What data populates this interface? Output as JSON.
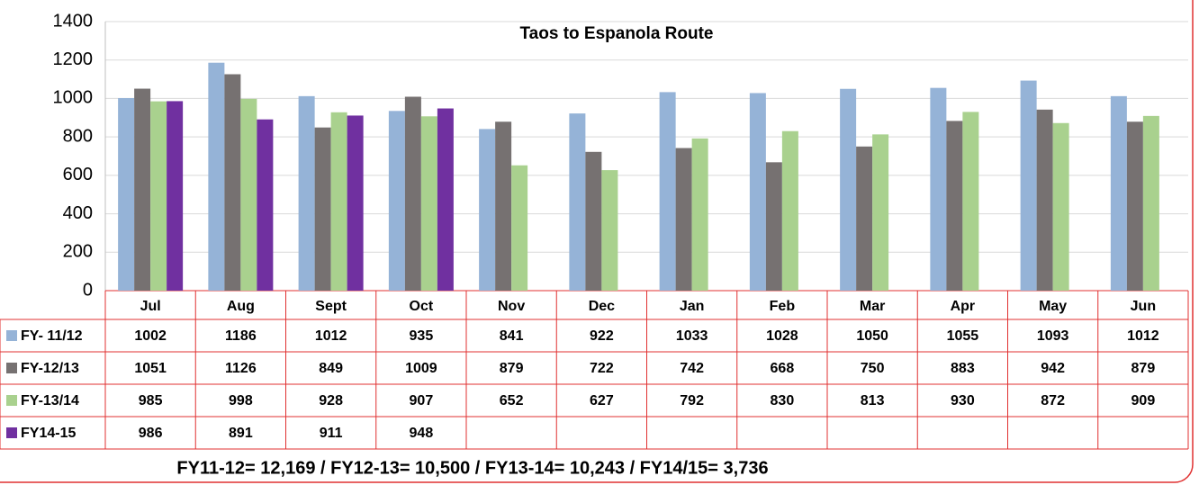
{
  "chart_data": {
    "type": "bar",
    "title": "Taos to Espanola Route",
    "categories": [
      "Jul",
      "Aug",
      "Sept",
      "Oct",
      "Nov",
      "Dec",
      "Jan",
      "Feb",
      "Mar",
      "Apr",
      "May",
      "Jun"
    ],
    "series": [
      {
        "name": "FY- 11/12",
        "color": "#95b3d7",
        "values": [
          1002,
          1186,
          1012,
          935,
          841,
          922,
          1033,
          1028,
          1050,
          1055,
          1093,
          1012
        ]
      },
      {
        "name": "FY-12/13",
        "color": "#767171",
        "values": [
          1051,
          1126,
          849,
          1009,
          879,
          722,
          742,
          668,
          750,
          883,
          942,
          879
        ]
      },
      {
        "name": "FY-13/14",
        "color": "#a9d18e",
        "values": [
          985,
          998,
          928,
          907,
          652,
          627,
          792,
          830,
          813,
          930,
          872,
          909
        ]
      },
      {
        "name": "FY14-15",
        "color": "#7030a0",
        "values": [
          986,
          891,
          911,
          948,
          null,
          null,
          null,
          null,
          null,
          null,
          null,
          null
        ]
      }
    ],
    "ylim": [
      0,
      1400
    ],
    "yticks": [
      0,
      200,
      400,
      600,
      800,
      1000,
      1200,
      1400
    ],
    "grid": true,
    "footer": "FY11-12= 12,169 /  FY12-13= 10,500 /  FY13-14= 10,243 / FY14/15= 3,736"
  }
}
